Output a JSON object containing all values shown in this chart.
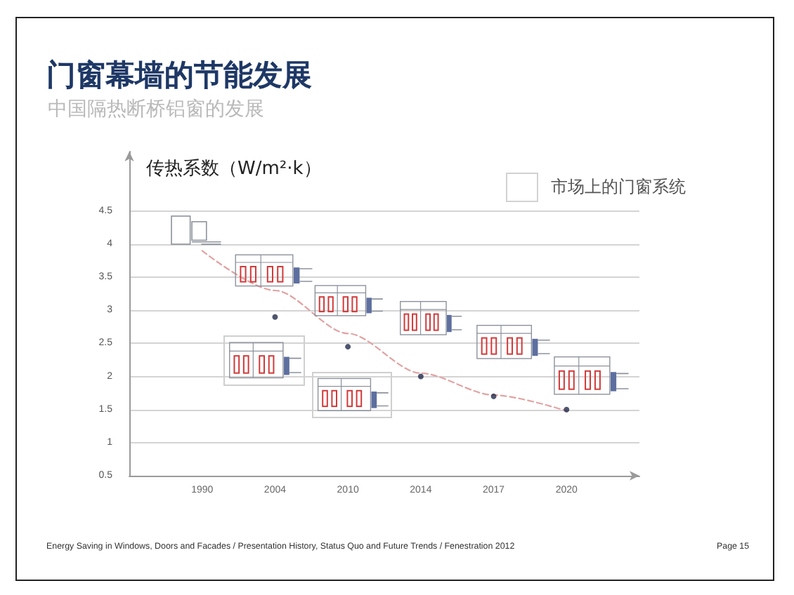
{
  "chart_data": {
    "type": "scatter",
    "title": "门窗幕墙的节能发展",
    "subtitle": "中国隔热断桥铝窗的发展",
    "ylabel": "传热系数（W/m²·k）",
    "categories": [
      "1990",
      "2004",
      "2010",
      "2014",
      "2017",
      "2020"
    ],
    "series": [
      {
        "type": "line",
        "color": "#e2a3a3",
        "values": [
          3.9,
          3.3,
          2.65,
          2.05,
          1.72,
          1.48
        ],
        "line_style": "dashed",
        "marker": "none"
      },
      {
        "color": "#222a4a",
        "values": [
          null,
          2.9,
          2.45,
          2.0,
          1.7,
          1.5
        ],
        "marker": "circle"
      }
    ],
    "ylim": [
      0.5,
      5.4
    ],
    "yticks": [
      0.5,
      1,
      1.5,
      2,
      2.5,
      3,
      3.5,
      4,
      4.5
    ],
    "grid": "y",
    "annotations": [
      "市场上的门窗系统",
      "Energy Saving in Windows, Doors and Facades  / Presentation History, Status Quo and Future Trends / Fenestration 2012",
      "Page 15"
    ]
  }
}
